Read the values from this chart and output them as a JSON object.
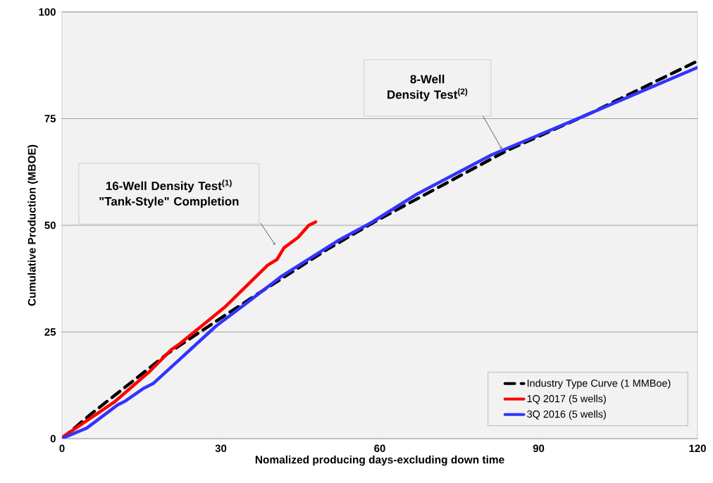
{
  "chart_data": {
    "type": "line",
    "xlabel": "Nomalized producing days-excluding down time",
    "ylabel": "Cumulative Production (MBOE)",
    "xlim": [
      0,
      120
    ],
    "xticks": [
      0,
      30,
      60,
      90,
      120
    ],
    "ylim": [
      0,
      100
    ],
    "yticks": [
      0,
      25,
      50,
      75,
      100
    ],
    "grid": "y",
    "legend": "bottom right",
    "marker": "none",
    "series": [
      {
        "name": "Industry Type Curve (1 MMBoe)",
        "color": "#000000",
        "line_style": "dashed",
        "x": [
          0,
          5.6,
          13.6,
          20,
          26.9,
          35.8,
          50.4,
          60,
          84,
          100,
          120
        ],
        "values": [
          0,
          5.9,
          13.7,
          20,
          25.7,
          33,
          44.6,
          51.5,
          67.5,
          76.4,
          88.5
        ]
      },
      {
        "name": "1Q 2017 (5 wells)",
        "color": "#ff0000",
        "line_style": "solid",
        "x": [
          0,
          0.3,
          10,
          16.6,
          20.6,
          22,
          30.9,
          38.8,
          40.6,
          41.9,
          44.6,
          46.6,
          47.9
        ],
        "values": [
          0,
          0.5,
          8.7,
          15.8,
          20.8,
          22,
          31,
          40.6,
          42,
          44.7,
          47.2,
          50,
          50.8
        ]
      },
      {
        "name": "3Q 2016 (5 wells)",
        "color": "#3333ff",
        "line_style": "solid",
        "x": [
          0,
          0.3,
          4.7,
          10.5,
          11.8,
          15.3,
          17.2,
          23.3,
          29.1,
          35.3,
          41.5,
          52.1,
          58.5,
          67,
          81.1,
          97.2,
          120
        ],
        "values": [
          0,
          0.2,
          2.5,
          7.9,
          8.7,
          11.7,
          12.9,
          19.8,
          26.4,
          32.2,
          38.1,
          46.4,
          50.7,
          57.3,
          66.5,
          74.9,
          87
        ]
      }
    ],
    "annotations": [
      "16-Well Density Test$^{(1)}$ \"Tank-Style\" Completion",
      "8-Well Density Test$^{(2)}$"
    ]
  }
}
